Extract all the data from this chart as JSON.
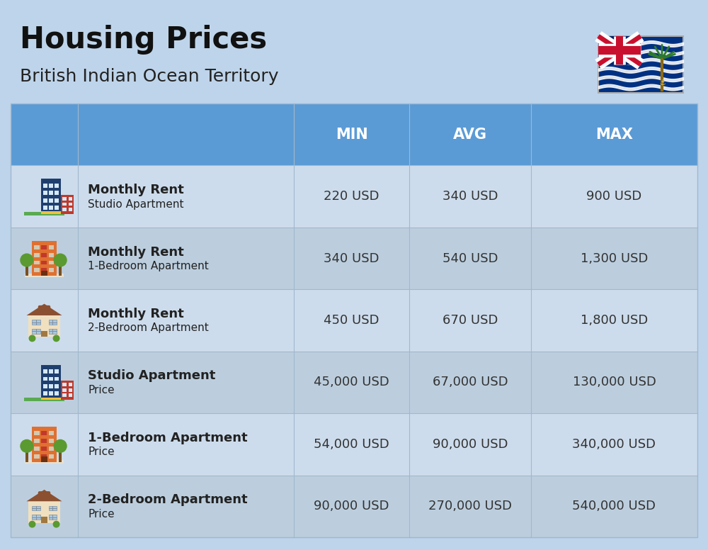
{
  "title": "Housing Prices",
  "subtitle": "British Indian Ocean Territory",
  "background_color": "#bed4ea",
  "header_color": "#5b9bd5",
  "header_text_color": "#ffffff",
  "row_bg_even": "#cddcec",
  "row_bg_odd": "#bccede",
  "col_headers": [
    "MIN",
    "AVG",
    "MAX"
  ],
  "rows": [
    {
      "bold_label": "Monthly Rent",
      "sub_label": "Studio Apartment",
      "min": "220 USD",
      "avg": "340 USD",
      "max": "900 USD",
      "icon": "blue"
    },
    {
      "bold_label": "Monthly Rent",
      "sub_label": "1-Bedroom Apartment",
      "min": "340 USD",
      "avg": "540 USD",
      "max": "1,300 USD",
      "icon": "orange"
    },
    {
      "bold_label": "Monthly Rent",
      "sub_label": "2-Bedroom Apartment",
      "min": "450 USD",
      "avg": "670 USD",
      "max": "1,800 USD",
      "icon": "beige"
    },
    {
      "bold_label": "Studio Apartment",
      "sub_label": "Price",
      "min": "45,000 USD",
      "avg": "67,000 USD",
      "max": "130,000 USD",
      "icon": "blue"
    },
    {
      "bold_label": "1-Bedroom Apartment",
      "sub_label": "Price",
      "min": "54,000 USD",
      "avg": "90,000 USD",
      "max": "340,000 USD",
      "icon": "orange"
    },
    {
      "bold_label": "2-Bedroom Apartment",
      "sub_label": "Price",
      "min": "90,000 USD",
      "avg": "270,000 USD",
      "max": "540,000 USD",
      "icon": "beige"
    }
  ],
  "divider_color": "#a0b8cc",
  "text_color": "#222222",
  "cell_text_color": "#333333",
  "title_fontsize": 30,
  "subtitle_fontsize": 18,
  "header_fontsize": 15,
  "cell_fontsize": 13,
  "label_bold_fontsize": 13,
  "label_sub_fontsize": 11
}
